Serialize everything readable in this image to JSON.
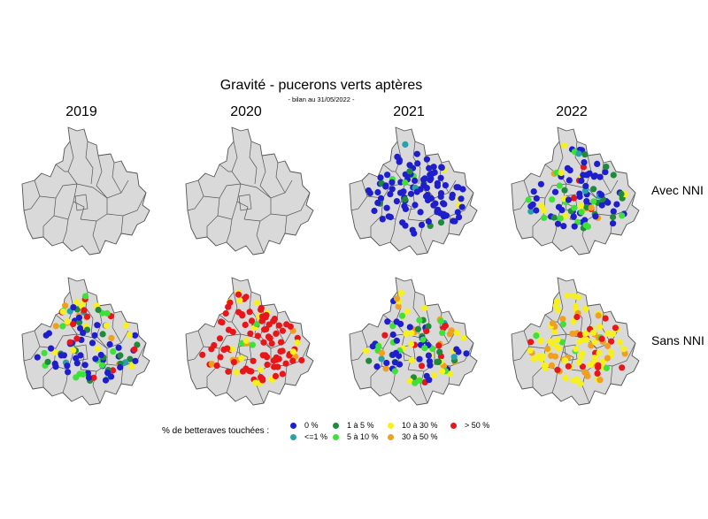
{
  "title": "Gravité - pucerons verts aptères",
  "subtitle": "- bilan au 31/05/2022 -",
  "years": [
    "2019",
    "2020",
    "2021",
    "2022"
  ],
  "rows": [
    "Avec NNI",
    "Sans NNI"
  ],
  "legend": {
    "title": "% de betteraves touchées :",
    "items": [
      {
        "label": "0 %",
        "color": "#1e1ecc"
      },
      {
        "label": "<=1 %",
        "color": "#2aa0a8"
      },
      {
        "label": "1 à 5 %",
        "color": "#1f8a3c"
      },
      {
        "label": "5 à 10 %",
        "color": "#3ee03a"
      },
      {
        "label": "10 à 30 %",
        "color": "#f6f01e"
      },
      {
        "label": "30 à 50 %",
        "color": "#f0a020"
      },
      {
        "label": "> 50 %",
        "color": "#e8161a"
      }
    ]
  },
  "map_style": {
    "fill": "#d9d9d9",
    "stroke": "#555555"
  },
  "panels": [
    {
      "year": "2019",
      "row": "Avec NNI",
      "distribution": {}
    },
    {
      "year": "2020",
      "row": "Avec NNI",
      "distribution": {}
    },
    {
      "year": "2021",
      "row": "Avec NNI",
      "distribution": {
        "0 %": 0.86,
        "<=1 %": 0.02,
        "1 à 5 %": 0.06,
        "5 à 10 %": 0.03,
        "10 à 30 %": 0.03
      }
    },
    {
      "year": "2022",
      "row": "Avec NNI",
      "distribution": {
        "0 %": 0.5,
        "<=1 %": 0.04,
        "1 à 5 %": 0.14,
        "5 à 10 %": 0.14,
        "10 à 30 %": 0.1,
        "30 à 50 %": 0.04,
        "> 50 %": 0.04
      }
    },
    {
      "year": "2019",
      "row": "Sans NNI",
      "distribution": {
        "0 %": 0.38,
        "<=1 %": 0.04,
        "1 à 5 %": 0.14,
        "5 à 10 %": 0.14,
        "10 à 30 %": 0.14,
        "30 à 50 %": 0.06,
        "> 50 %": 0.1
      }
    },
    {
      "year": "2020",
      "row": "Sans NNI",
      "distribution": {
        "5 à 10 %": 0.04,
        "10 à 30 %": 0.16,
        "30 à 50 %": 0.05,
        "> 50 %": 0.75
      }
    },
    {
      "year": "2021",
      "row": "Sans NNI",
      "distribution": {
        "0 %": 0.3,
        "<=1 %": 0.03,
        "1 à 5 %": 0.1,
        "5 à 10 %": 0.15,
        "10 à 30 %": 0.22,
        "30 à 50 %": 0.12,
        "> 50 %": 0.08
      }
    },
    {
      "year": "2022",
      "row": "Sans NNI",
      "distribution": {
        "10 à 30 %": 0.55,
        "30 à 50 %": 0.25,
        "> 50 %": 0.15,
        "5 à 10 %": 0.05
      }
    }
  ]
}
